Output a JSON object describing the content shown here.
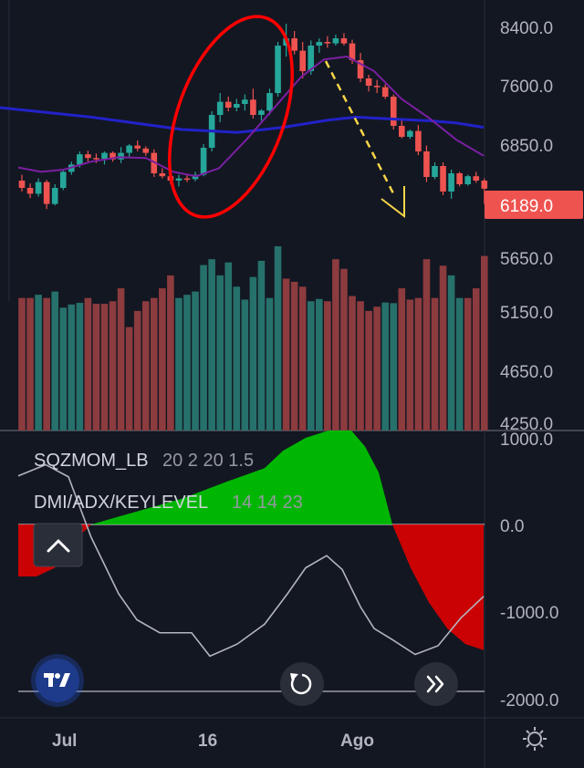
{
  "chart": {
    "price_axis_labels": [
      "8400.0",
      "7600.0",
      "6850.0",
      "5650.0",
      "5150.0",
      "4650.0",
      "4250.0"
    ],
    "current_price": "6189.0",
    "indicator_axis_labels": [
      "1000.0",
      "0.0",
      "-1000.0",
      "-2000.0"
    ],
    "time_labels": [
      "Jul",
      "16",
      "Ago"
    ]
  },
  "indicators": [
    {
      "name": "SQZMOM_LB",
      "params": "20 2 20 1.5"
    },
    {
      "name": "DMI/ADX/KEYLEVEL",
      "params": "14 14 23"
    }
  ],
  "colors": {
    "background": "#131722",
    "bull": "#26a69a",
    "bear": "#ef5350",
    "volume_bull": "#26716b",
    "volume_bear": "#8c3b3e",
    "ma_slow": "#2222c8",
    "ma_fast": "#7b1fa2",
    "current_price_bg": "#ef5350",
    "annotation_red": "#ff0000",
    "annotation_yellow": "#f9d648",
    "squeeze_green": "#00c800",
    "squeeze_red": "#e00000",
    "adx_line": "#b2b5be"
  },
  "icons": {
    "collapse": "chevron-up-icon",
    "logo": "tradingview-logo",
    "reset": "rotate-icon",
    "scroll_right": "double-chevron-right-icon",
    "settings": "gear-icon"
  },
  "candles": [
    [
      6300,
      6380,
      6150,
      6200
    ],
    [
      6200,
      6260,
      6060,
      6120
    ],
    [
      6120,
      6330,
      6080,
      6280
    ],
    [
      6280,
      6310,
      5910,
      5980
    ],
    [
      5980,
      6250,
      5960,
      6200
    ],
    [
      6200,
      6450,
      6170,
      6420
    ],
    [
      6420,
      6560,
      6380,
      6520
    ],
    [
      6520,
      6700,
      6480,
      6660
    ],
    [
      6660,
      6710,
      6560,
      6610
    ],
    [
      6610,
      6670,
      6540,
      6600
    ],
    [
      6600,
      6700,
      6520,
      6680
    ],
    [
      6680,
      6700,
      6560,
      6590
    ],
    [
      6590,
      6760,
      6540,
      6680
    ],
    [
      6680,
      6800,
      6620,
      6780
    ],
    [
      6780,
      6850,
      6700,
      6740
    ],
    [
      6740,
      6770,
      6640,
      6680
    ],
    [
      6680,
      6730,
      6350,
      6400
    ],
    [
      6400,
      6470,
      6330,
      6360
    ],
    [
      6360,
      6400,
      6250,
      6300
    ],
    [
      6300,
      6380,
      6220,
      6330
    ],
    [
      6330,
      6390,
      6280,
      6320
    ],
    [
      6320,
      6420,
      6290,
      6380
    ],
    [
      6380,
      6800,
      6360,
      6750
    ],
    [
      6750,
      7250,
      6700,
      7200
    ],
    [
      7200,
      7500,
      7100,
      7380
    ],
    [
      7380,
      7450,
      7250,
      7300
    ],
    [
      7300,
      7420,
      7250,
      7350
    ],
    [
      7350,
      7480,
      7260,
      7410
    ],
    [
      7410,
      7560,
      7150,
      7200
    ],
    [
      7200,
      7280,
      7120,
      7260
    ],
    [
      7260,
      7560,
      7200,
      7500
    ],
    [
      7500,
      8200,
      7450,
      8150
    ],
    [
      8150,
      8450,
      8000,
      8250
    ],
    [
      8250,
      8350,
      8030,
      8080
    ],
    [
      8080,
      8200,
      7700,
      7800
    ],
    [
      7800,
      8220,
      7750,
      8150
    ],
    [
      8150,
      8250,
      8050,
      8200
    ],
    [
      8200,
      8280,
      8120,
      8180
    ],
    [
      8180,
      8300,
      8150,
      8250
    ],
    [
      8250,
      8320,
      8150,
      8180
    ],
    [
      8180,
      8230,
      7900,
      7950
    ],
    [
      7950,
      8050,
      7650,
      7700
    ],
    [
      7700,
      7750,
      7520,
      7600
    ],
    [
      7600,
      7680,
      7500,
      7580
    ],
    [
      7580,
      7620,
      7420,
      7450
    ],
    [
      7450,
      7480,
      7000,
      7050
    ],
    [
      7050,
      7150,
      6880,
      6900
    ],
    [
      6900,
      7000,
      6870,
      6980
    ],
    [
      6980,
      7060,
      6650,
      6700
    ],
    [
      6700,
      6780,
      6280,
      6350
    ],
    [
      6350,
      6550,
      6320,
      6500
    ],
    [
      6500,
      6550,
      6100,
      6150
    ],
    [
      6150,
      6450,
      6050,
      6400
    ],
    [
      6400,
      6420,
      6220,
      6250
    ],
    [
      6250,
      6380,
      6230,
      6360
    ],
    [
      6360,
      6420,
      6270,
      6300
    ],
    [
      6300,
      6330,
      5980,
      6189
    ]
  ],
  "volumes": [
    [
      410,
      "bear"
    ],
    [
      410,
      "bear"
    ],
    [
      420,
      "bull"
    ],
    [
      410,
      "bear"
    ],
    [
      430,
      "bull"
    ],
    [
      380,
      "bull"
    ],
    [
      390,
      "bull"
    ],
    [
      395,
      "bull"
    ],
    [
      410,
      "bear"
    ],
    [
      392,
      "bear"
    ],
    [
      392,
      "bear"
    ],
    [
      400,
      "bear"
    ],
    [
      440,
      "bear"
    ],
    [
      320,
      "bear"
    ],
    [
      370,
      "bear"
    ],
    [
      400,
      "bear"
    ],
    [
      410,
      "bear"
    ],
    [
      440,
      "bear"
    ],
    [
      480,
      "bear"
    ],
    [
      410,
      "bull"
    ],
    [
      420,
      "bull"
    ],
    [
      430,
      "bull"
    ],
    [
      512,
      "bull"
    ],
    [
      530,
      "bull"
    ],
    [
      480,
      "bull"
    ],
    [
      520,
      "bull"
    ],
    [
      445,
      "bull"
    ],
    [
      405,
      "bull"
    ],
    [
      475,
      "bull"
    ],
    [
      525,
      "bull"
    ],
    [
      410,
      "bull"
    ],
    [
      570,
      "bull"
    ],
    [
      470,
      "bear"
    ],
    [
      460,
      "bear"
    ],
    [
      445,
      "bear"
    ],
    [
      400,
      "bull"
    ],
    [
      407,
      "bull"
    ],
    [
      400,
      "bear"
    ],
    [
      530,
      "bear"
    ],
    [
      500,
      "bear"
    ],
    [
      416,
      "bear"
    ],
    [
      400,
      "bear"
    ],
    [
      370,
      "bear"
    ],
    [
      383,
      "bear"
    ],
    [
      396,
      "bull"
    ],
    [
      394,
      "bull"
    ],
    [
      440,
      "bear"
    ],
    [
      405,
      "bear"
    ],
    [
      410,
      "bear"
    ],
    [
      530,
      "bear"
    ],
    [
      410,
      "bear"
    ],
    [
      510,
      "bear"
    ],
    [
      480,
      "bull"
    ],
    [
      410,
      "bull"
    ],
    [
      410,
      "bear"
    ],
    [
      440,
      "bear"
    ],
    [
      540,
      "bear"
    ]
  ],
  "ma_slow": [
    [
      0,
      7300
    ],
    [
      100,
      7170
    ],
    [
      200,
      7000
    ],
    [
      260,
      6960
    ],
    [
      310,
      7030
    ],
    [
      360,
      7130
    ],
    [
      390,
      7170
    ],
    [
      420,
      7150
    ],
    [
      470,
      7120
    ],
    [
      500,
      7090
    ],
    [
      530,
      7030
    ]
  ],
  "ma_fast": [
    [
      20,
      6480
    ],
    [
      45,
      6420
    ],
    [
      70,
      6450
    ],
    [
      100,
      6560
    ],
    [
      130,
      6620
    ],
    [
      160,
      6610
    ],
    [
      190,
      6420
    ],
    [
      215,
      6360
    ],
    [
      240,
      6470
    ],
    [
      270,
      6860
    ],
    [
      300,
      7290
    ],
    [
      330,
      7720
    ],
    [
      355,
      7960
    ],
    [
      380,
      8000
    ],
    [
      410,
      7800
    ],
    [
      440,
      7420
    ],
    [
      470,
      7160
    ],
    [
      500,
      6860
    ],
    [
      530,
      6640
    ]
  ],
  "squeeze_momentum": [
    [
      20,
      -600
    ],
    [
      40,
      -600
    ],
    [
      60,
      -500
    ],
    [
      90,
      -100
    ],
    [
      100,
      0
    ],
    [
      150,
      150
    ],
    [
      200,
      300
    ],
    [
      250,
      500
    ],
    [
      290,
      650
    ],
    [
      310,
      850
    ],
    [
      335,
      1000
    ],
    [
      360,
      1150
    ],
    [
      385,
      1150
    ],
    [
      400,
      900
    ],
    [
      415,
      600
    ],
    [
      430,
      0
    ],
    [
      450,
      -500
    ],
    [
      470,
      -900
    ],
    [
      490,
      -1200
    ],
    [
      510,
      -1380
    ],
    [
      530,
      -1450
    ]
  ],
  "adx_line": [
    [
      20,
      560
    ],
    [
      50,
      690
    ],
    [
      75,
      550
    ],
    [
      100,
      -150
    ],
    [
      130,
      -800
    ],
    [
      150,
      -1100
    ],
    [
      175,
      -1250
    ],
    [
      210,
      -1250
    ],
    [
      230,
      -1520
    ],
    [
      260,
      -1380
    ],
    [
      290,
      -1150
    ],
    [
      315,
      -800
    ],
    [
      335,
      -500
    ],
    [
      358,
      -360
    ],
    [
      375,
      -520
    ],
    [
      395,
      -950
    ],
    [
      410,
      -1200
    ],
    [
      430,
      -1330
    ],
    [
      455,
      -1500
    ],
    [
      480,
      -1400
    ],
    [
      505,
      -1080
    ],
    [
      530,
      -830
    ]
  ]
}
